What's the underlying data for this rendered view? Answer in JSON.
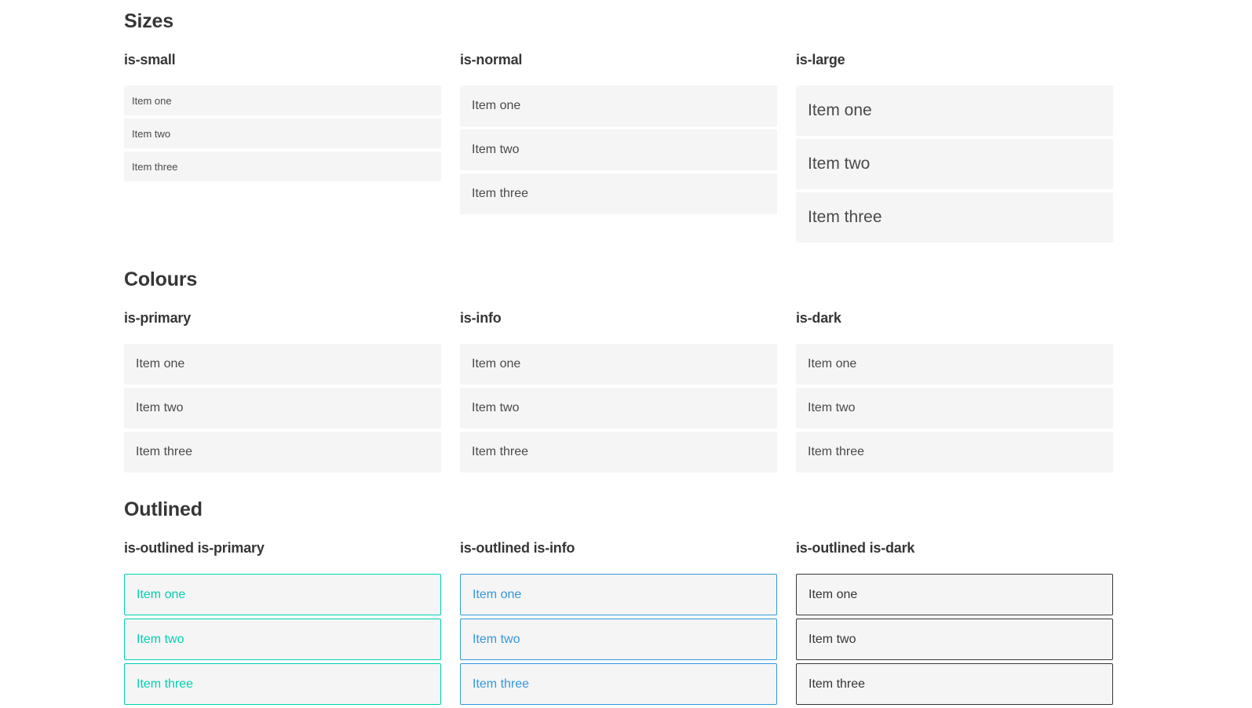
{
  "colors": {
    "primary": "#00d1b2",
    "info": "#3298dc",
    "dark": "#363636",
    "item_bg": "#f5f5f5",
    "heading": "#363636",
    "text": "#4a4a4a",
    "light_text": "#f0f0f0",
    "page_bg": "#ffffff"
  },
  "sections": [
    {
      "title": "Sizes",
      "groups": [
        {
          "subtitle": "is-small",
          "items": [
            "Item one",
            "Item two",
            "Item three"
          ]
        },
        {
          "subtitle": "is-normal",
          "items": [
            "Item one",
            "Item two",
            "Item three"
          ]
        },
        {
          "subtitle": "is-large",
          "items": [
            "Item one",
            "Item two",
            "Item three"
          ]
        }
      ]
    },
    {
      "title": "Colours",
      "groups": [
        {
          "subtitle": "is-primary",
          "items": [
            "Item one",
            "Item two",
            "Item three"
          ]
        },
        {
          "subtitle": "is-info",
          "items": [
            "Item one",
            "Item two",
            "Item three"
          ]
        },
        {
          "subtitle": "is-dark",
          "items": [
            "Item one",
            "Item two",
            "Item three"
          ]
        }
      ]
    },
    {
      "title": "Outlined",
      "groups": [
        {
          "subtitle": "is-outlined is-primary",
          "items": [
            "Item one",
            "Item two",
            "Item three"
          ]
        },
        {
          "subtitle": "is-outlined is-info",
          "items": [
            "Item one",
            "Item two",
            "Item three"
          ]
        },
        {
          "subtitle": "is-outlined is-dark",
          "items": [
            "Item one",
            "Item two",
            "Item three"
          ]
        }
      ]
    }
  ]
}
